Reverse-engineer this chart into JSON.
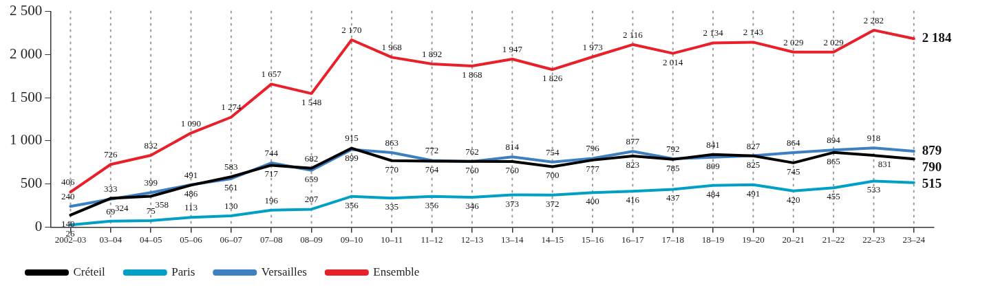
{
  "chart_data": {
    "type": "line",
    "categories": [
      "2002–03",
      "03–04",
      "04–05",
      "05–06",
      "06–07",
      "07–08",
      "08–09",
      "09–10",
      "10–11",
      "11–12",
      "12–13",
      "13–14",
      "14–15",
      "15–16",
      "16–17",
      "17–18",
      "18–19",
      "19–20",
      "20–21",
      "21–22",
      "22–23",
      "23–24"
    ],
    "series": [
      {
        "name": "Créteil",
        "color": "#000000",
        "values": [
          140,
          333,
          358,
          486,
          583,
          717,
          682,
          915,
          770,
          764,
          762,
          760,
          700,
          777,
          823,
          785,
          841,
          825,
          745,
          865,
          831,
          790
        ],
        "value_labels": [
          "140",
          "333",
          "358",
          "486",
          "583",
          "717",
          "682",
          "915",
          "770",
          "764",
          "762",
          "760",
          "700",
          "777",
          "823",
          "785",
          "841",
          "825",
          "745",
          "865",
          "831",
          "790"
        ]
      },
      {
        "name": "Paris",
        "color": "#00a0c6",
        "values": [
          26,
          69,
          75,
          113,
          130,
          196,
          207,
          356,
          335,
          356,
          346,
          373,
          372,
          400,
          416,
          437,
          484,
          491,
          420,
          455,
          533,
          515
        ],
        "value_labels": [
          "26",
          "69",
          "75",
          "113",
          "130",
          "196",
          "207",
          "356",
          "335",
          "356",
          "346",
          "373",
          "372",
          "400",
          "416",
          "437",
          "484",
          "491",
          "420",
          "455",
          "533",
          "515"
        ]
      },
      {
        "name": "Versailles",
        "color": "#3d7fc0",
        "values": [
          240,
          324,
          399,
          491,
          561,
          744,
          659,
          899,
          863,
          772,
          760,
          814,
          754,
          796,
          877,
          792,
          809,
          827,
          864,
          894,
          918,
          879
        ],
        "value_labels": [
          "240",
          "324",
          "399",
          "491",
          "561",
          "744",
          "659",
          "899",
          "863",
          "772",
          "760",
          "814",
          "754",
          "796",
          "877",
          "792",
          "809",
          "827",
          "864",
          "894",
          "918",
          "879"
        ]
      },
      {
        "name": "Ensemble",
        "color": "#e8202a",
        "values": [
          406,
          726,
          832,
          1090,
          1274,
          1657,
          1548,
          2170,
          1968,
          1892,
          1868,
          1947,
          1826,
          1973,
          2116,
          2014,
          2134,
          2143,
          2029,
          2029,
          2282,
          2184
        ],
        "value_labels": [
          "406",
          "726",
          "832",
          "1 090",
          "1 274",
          "1 657",
          "1 548",
          "2 170",
          "1 968",
          "1 892",
          "1 868",
          "1 947",
          "1 826",
          "1 973",
          "2 116",
          "2 014",
          "2 134",
          "2 143",
          "2 029",
          "2 029",
          "2 282",
          "2 184"
        ]
      }
    ],
    "ylim": [
      0,
      2500
    ],
    "yticks": [
      0,
      500,
      {
        "value": 1000,
        "label": "1 000"
      },
      {
        "value": 1500,
        "label": "1 500"
      },
      {
        "value": 2000,
        "label": "2 000"
      },
      {
        "value": 2500,
        "label": "2 500"
      }
    ],
    "grid": "x",
    "legend": "bottom",
    "marker": "none",
    "line_style": "solid"
  }
}
